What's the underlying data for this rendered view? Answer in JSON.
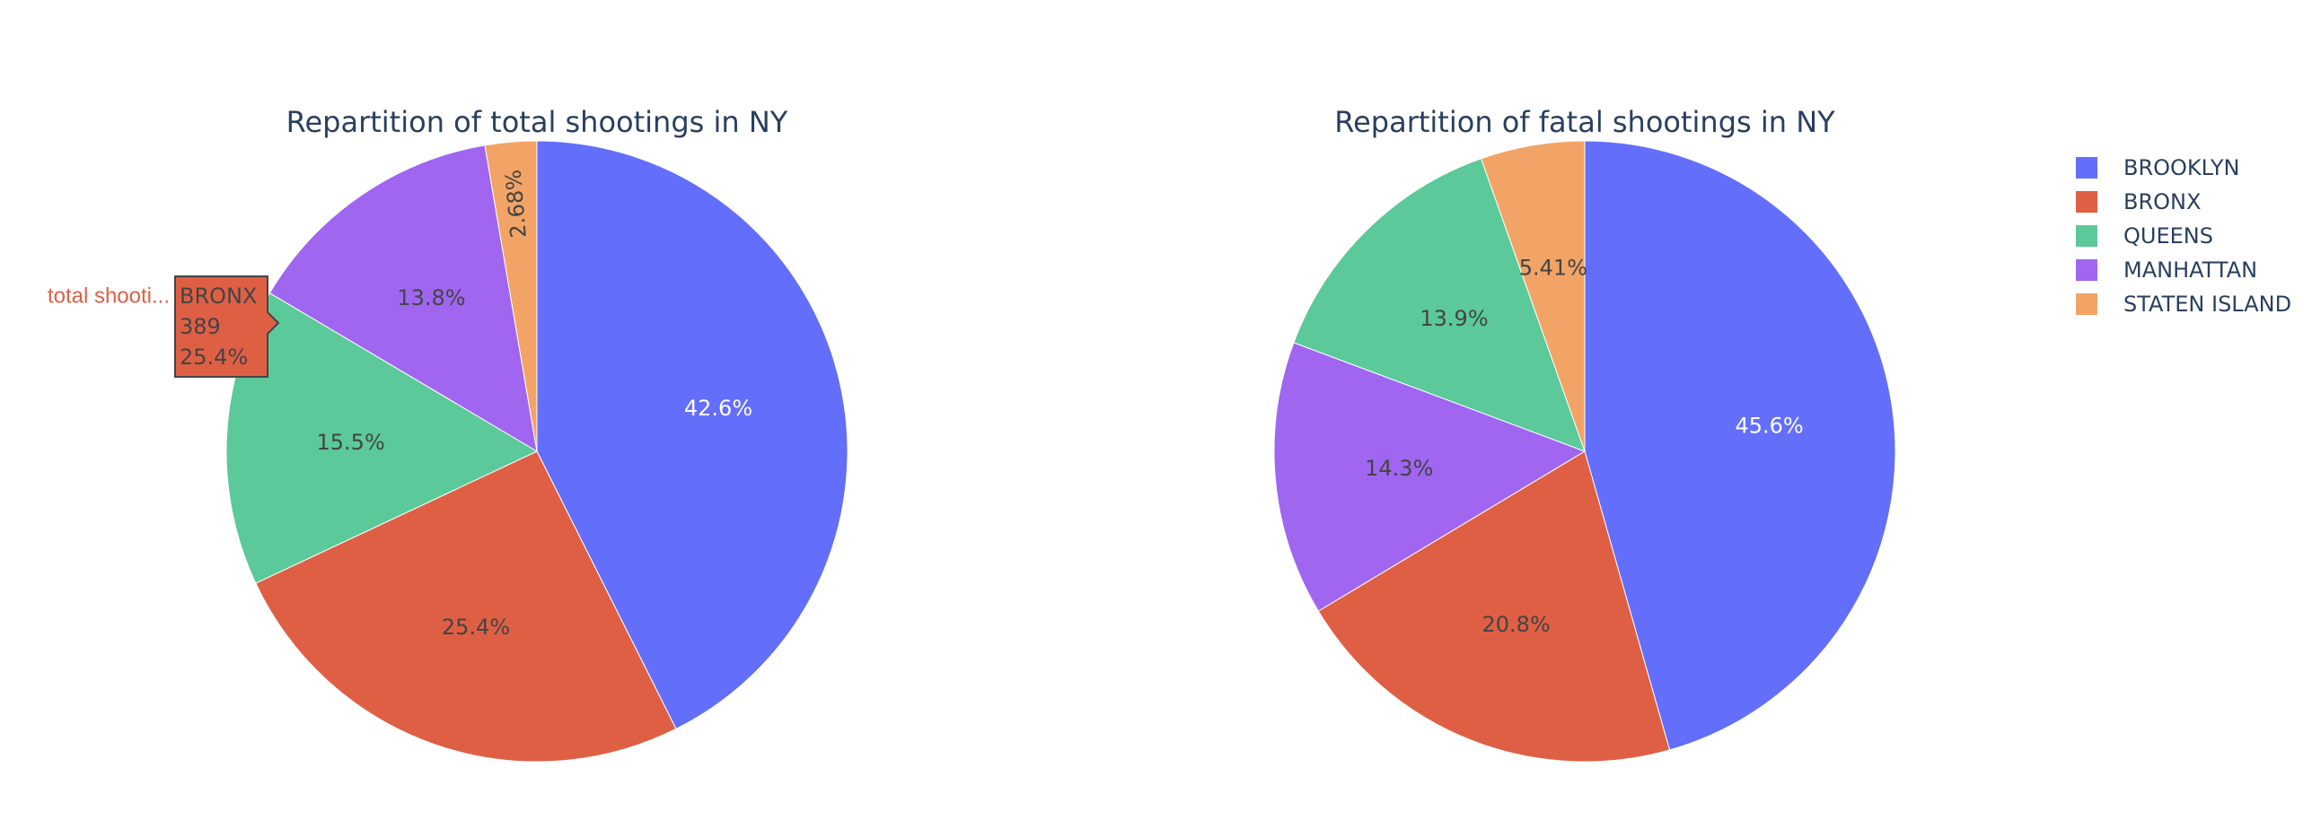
{
  "chart_data": [
    {
      "type": "pie",
      "title": "Repartition of total shootings in NY",
      "categories": [
        "BROOKLYN",
        "BRONX",
        "QUEENS",
        "MANHATTAN",
        "STATEN ISLAND"
      ],
      "values": [
        42.6,
        25.4,
        15.5,
        13.8,
        2.68
      ],
      "value_labels": [
        "42.6%",
        "25.4%",
        "15.5%",
        "13.8%",
        "2.68%"
      ],
      "sort": "descending"
    },
    {
      "type": "pie",
      "title": "Repartition of fatal shootings in NY",
      "categories": [
        "BROOKLYN",
        "BRONX",
        "MANHATTAN",
        "QUEENS",
        "STATEN ISLAND"
      ],
      "values": [
        45.6,
        20.8,
        14.3,
        13.9,
        5.41
      ],
      "value_labels": [
        "45.6%",
        "20.8%",
        "14.3%",
        "13.9%",
        "5.41%"
      ],
      "sort": "descending"
    }
  ],
  "legend": {
    "placement": "top-right",
    "items": [
      {
        "label": "BROOKLYN",
        "color": "#636efa"
      },
      {
        "label": "BRONX",
        "color": "#EF553B"
      },
      {
        "label": "QUEENS",
        "color": "#00cc96"
      },
      {
        "label": "MANHATTAN",
        "color": "#ab63fa"
      },
      {
        "label": "STATEN ISLAND",
        "color": "#FFA15A"
      }
    ]
  },
  "colors": {
    "BROOKLYN": "#636efa",
    "BRONX": "#df5f45",
    "QUEENS": "#5bc99a",
    "MANHATTAN": "#a066f0",
    "STATEN ISLAND": "#f2a466"
  },
  "hover": {
    "trace_name": "total shooti...",
    "lines": [
      "BRONX",
      "389",
      "25.4%"
    ],
    "color": "#df5f45"
  }
}
